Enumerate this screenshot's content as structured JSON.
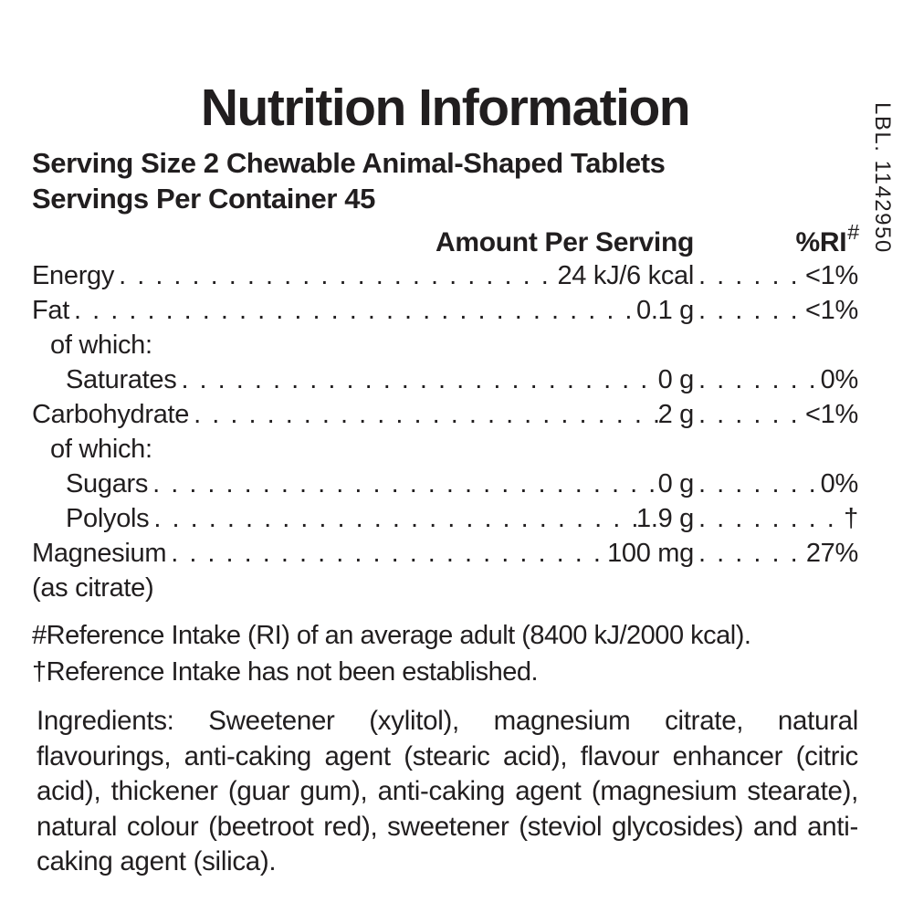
{
  "label": {
    "title": "Nutrition Information",
    "serving_size": "Serving Size 2 Chewable Animal-Shaped Tablets",
    "servings_per_container": "Servings Per Container 45",
    "columns": {
      "amount_header": "Amount Per Serving",
      "ri_header": "%RI",
      "ri_marker": "#"
    },
    "rows": [
      {
        "name": "Energy",
        "amount": "24 kJ/6 kcal",
        "ri": "<1%"
      },
      {
        "name": "Fat",
        "amount": "0.1 g",
        "ri": "<1%"
      },
      {
        "name": "of which:"
      },
      {
        "name": "Saturates",
        "amount": "0 g",
        "ri": "0%"
      },
      {
        "name": "Carbohydrate",
        "amount": "2 g",
        "ri": "<1%"
      },
      {
        "name": "of which:"
      },
      {
        "name": "Sugars",
        "amount": "0 g",
        "ri": "0%"
      },
      {
        "name": "Polyols",
        "amount": "1.9 g",
        "ri": "†"
      },
      {
        "name": "Magnesium (as citrate)",
        "amount": "100 mg",
        "ri": "27%"
      }
    ],
    "footnotes": [
      "#Reference Intake (RI) of an average adult (8400 kJ/2000 kcal).",
      "†Reference Intake has not been established."
    ],
    "ingredients": "Ingredients: Sweetener (xylitol), magnesium citrate, natural flavourings, anti-caking agent (stearic acid), flavour enhancer (citric acid), thickener (guar gum), anti-caking agent (magnesium stearate), natural colour (beetroot red), sweetener (steviol glycosides) and anti-caking agent (silica).",
    "side_code": "LBL. 1142950",
    "colors": {
      "text": "#211e1f",
      "background": "#ffffff"
    }
  }
}
